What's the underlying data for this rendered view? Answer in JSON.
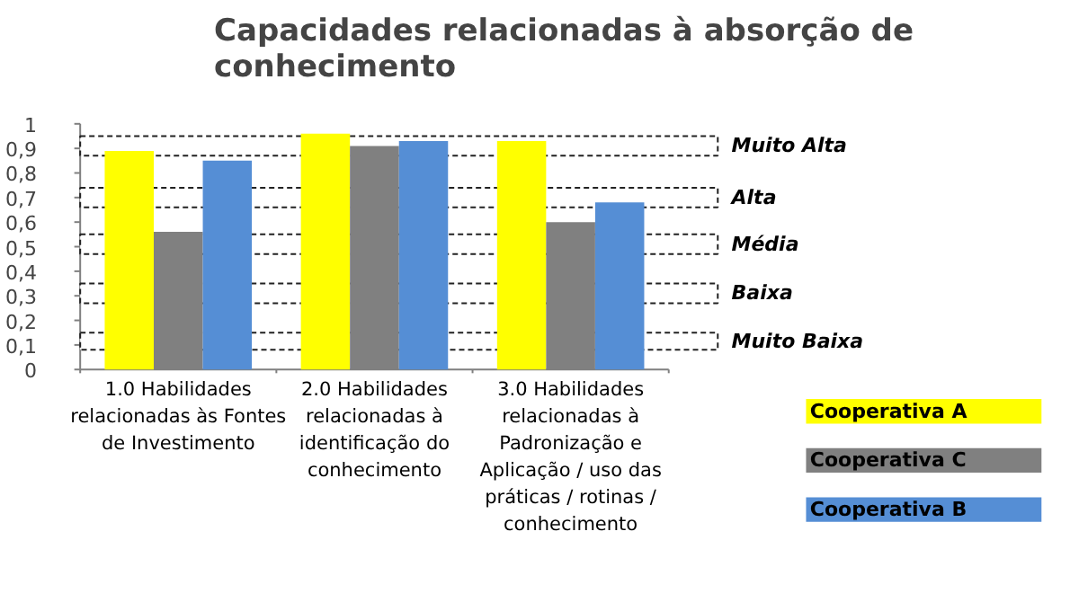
{
  "chart_data": {
    "type": "bar",
    "title": "Capacidades relacionadas à absorção de conhecimento",
    "categories": [
      "1.0 Habilidades relacionadas às Fontes de Investimento",
      "2.0 Habilidades relacionadas à identificação do conhecimento",
      "3.0 Habilidades relacionadas à Padronização e Aplicação / uso das práticas / rotinas / conhecimento"
    ],
    "series": [
      {
        "name": "Cooperativa A",
        "color": "#ffff00",
        "values": [
          0.89,
          0.96,
          0.93
        ]
      },
      {
        "name": "Cooperativa C",
        "color": "#808080",
        "values": [
          0.56,
          0.91,
          0.6
        ]
      },
      {
        "name": "Cooperativa B",
        "color": "#558ed5",
        "values": [
          0.85,
          0.93,
          0.68
        ]
      }
    ],
    "ylim": [
      0,
      1
    ],
    "yticks": [
      0,
      {
        "value": 0.1,
        "label": "0,1"
      },
      {
        "value": 0.2,
        "label": "0,2"
      },
      {
        "value": 0.3,
        "label": "0,3"
      },
      {
        "value": 0.4,
        "label": "0,4"
      },
      {
        "value": 0.5,
        "label": "0,5"
      },
      {
        "value": 0.6,
        "label": "0,6"
      },
      {
        "value": 0.7,
        "label": "0,7"
      },
      {
        "value": 0.8,
        "label": "0,8"
      },
      {
        "value": 0.9,
        "label": "0,9"
      },
      1
    ],
    "bands": [
      {
        "axis": "y",
        "from": 0.87,
        "to": 0.95,
        "label": "Muito Alta",
        "color": "#ffffff"
      },
      {
        "axis": "y",
        "from": 0.66,
        "to": 0.74,
        "label": "Alta",
        "color": "#ffffff"
      },
      {
        "axis": "y",
        "from": 0.47,
        "to": 0.55,
        "label": "Média",
        "color": "#ffffff"
      },
      {
        "axis": "y",
        "from": 0.27,
        "to": 0.35,
        "label": "Baixa",
        "color": "#ffffff"
      },
      {
        "axis": "y",
        "from": 0.08,
        "to": 0.15,
        "label": "Muito Baixa",
        "color": "#ffffff"
      }
    ],
    "grid": false,
    "legend": "bottom right"
  }
}
